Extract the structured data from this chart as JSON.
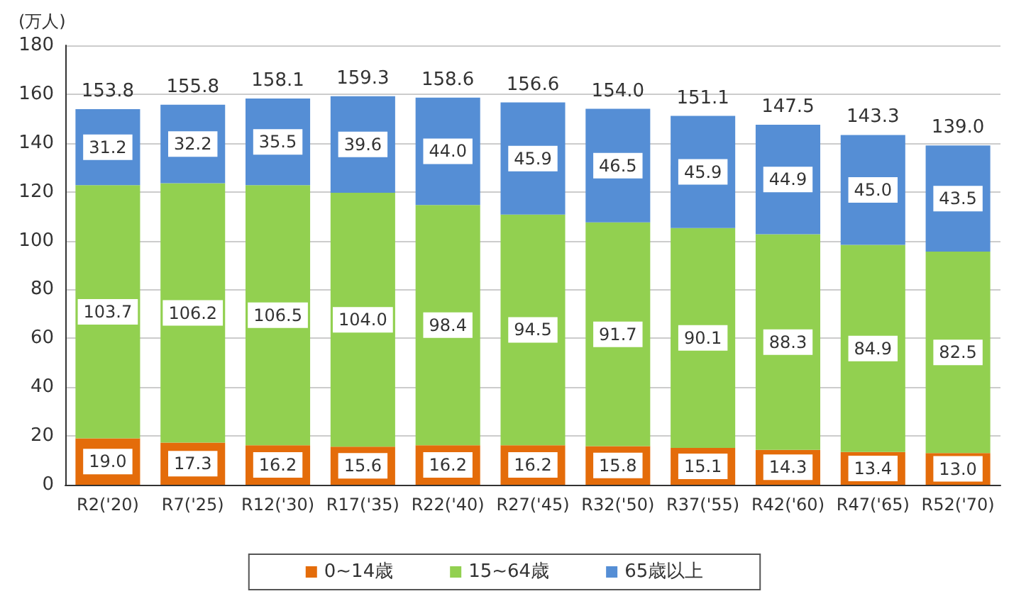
{
  "chart_data": {
    "type": "bar",
    "stacked": true,
    "ylabel": "(万人)",
    "categories": [
      "R2('20)",
      "R7('25)",
      "R12('30)",
      "R17('35)",
      "R22('40)",
      "R27('45)",
      "R32('50)",
      "R37('55)",
      "R42('60)",
      "R47('65)",
      "R52('70)"
    ],
    "series": [
      {
        "name": "0~14歳",
        "color": "#e46c0a",
        "values": [
          19.0,
          17.3,
          16.2,
          15.6,
          16.2,
          16.2,
          15.8,
          15.1,
          14.3,
          13.4,
          13.0
        ],
        "value_labels": [
          "19.0",
          "17.3",
          "16.2",
          "15.6",
          "16.2",
          "16.2",
          "15.8",
          "15.1",
          "14.3",
          "13.4",
          "13.0"
        ]
      },
      {
        "name": "15~64歳",
        "color": "#92d050",
        "values": [
          103.7,
          106.2,
          106.5,
          104.0,
          98.4,
          94.5,
          91.7,
          90.1,
          88.3,
          84.9,
          82.5
        ],
        "value_labels": [
          "103.7",
          "106.2",
          "106.5",
          "104.0",
          "98.4",
          "94.5",
          "91.7",
          "90.1",
          "88.3",
          "84.9",
          "82.5"
        ]
      },
      {
        "name": "65歳以上",
        "color": "#558ed5",
        "values": [
          31.2,
          32.2,
          35.5,
          39.6,
          44.0,
          45.9,
          46.5,
          45.9,
          44.9,
          45.0,
          43.5
        ],
        "value_labels": [
          "31.2",
          "32.2",
          "35.5",
          "39.6",
          "44.0",
          "45.9",
          "46.5",
          "45.9",
          "44.9",
          "45.0",
          "43.5"
        ]
      }
    ],
    "totals": [
      "153.8",
      "155.8",
      "158.1",
      "159.3",
      "158.6",
      "156.6",
      "154.0",
      "151.1",
      "147.5",
      "143.3",
      "139.0"
    ],
    "ylim": [
      0,
      180
    ],
    "yticks": [
      0,
      20,
      40,
      60,
      80,
      100,
      120,
      140,
      160,
      180
    ],
    "grid": "y",
    "legend": "bottom"
  }
}
